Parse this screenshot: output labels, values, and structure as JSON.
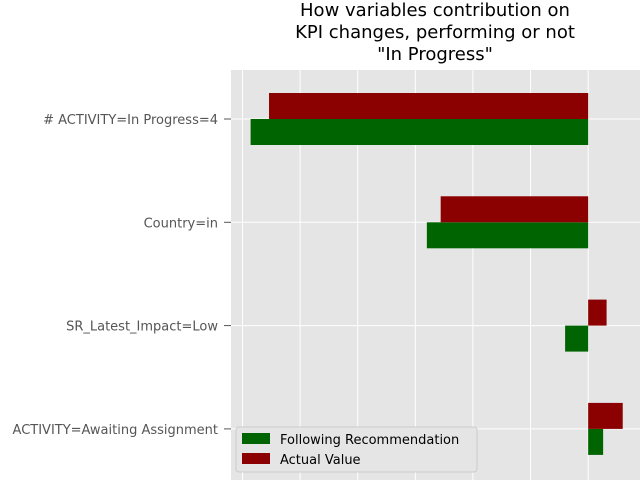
{
  "chart_data": {
    "type": "bar",
    "orientation": "horizontal",
    "title": [
      "How variables contribution on",
      "KPI changes, performing or not",
      "\"In Progress\""
    ],
    "xlabel": "",
    "ylabel": "",
    "categories": [
      "# ACTIVITY=In Progress=4",
      "Country=in",
      "SR_Latest_Impact=Low",
      "ACTIVITY=Awaiting Assignment"
    ],
    "series": [
      {
        "name": "Following Recommendation",
        "color": "#006400",
        "values": [
          -0.293,
          -0.14,
          -0.02,
          0.013
        ]
      },
      {
        "name": "Actual Value",
        "color": "#8b0000",
        "values": [
          -0.277,
          -0.128,
          0.016,
          0.03
        ]
      }
    ],
    "xlim": [
      -0.31,
      0.045
    ],
    "grid": true,
    "legend_position": "lower-left",
    "background": "#e5e5e5"
  }
}
